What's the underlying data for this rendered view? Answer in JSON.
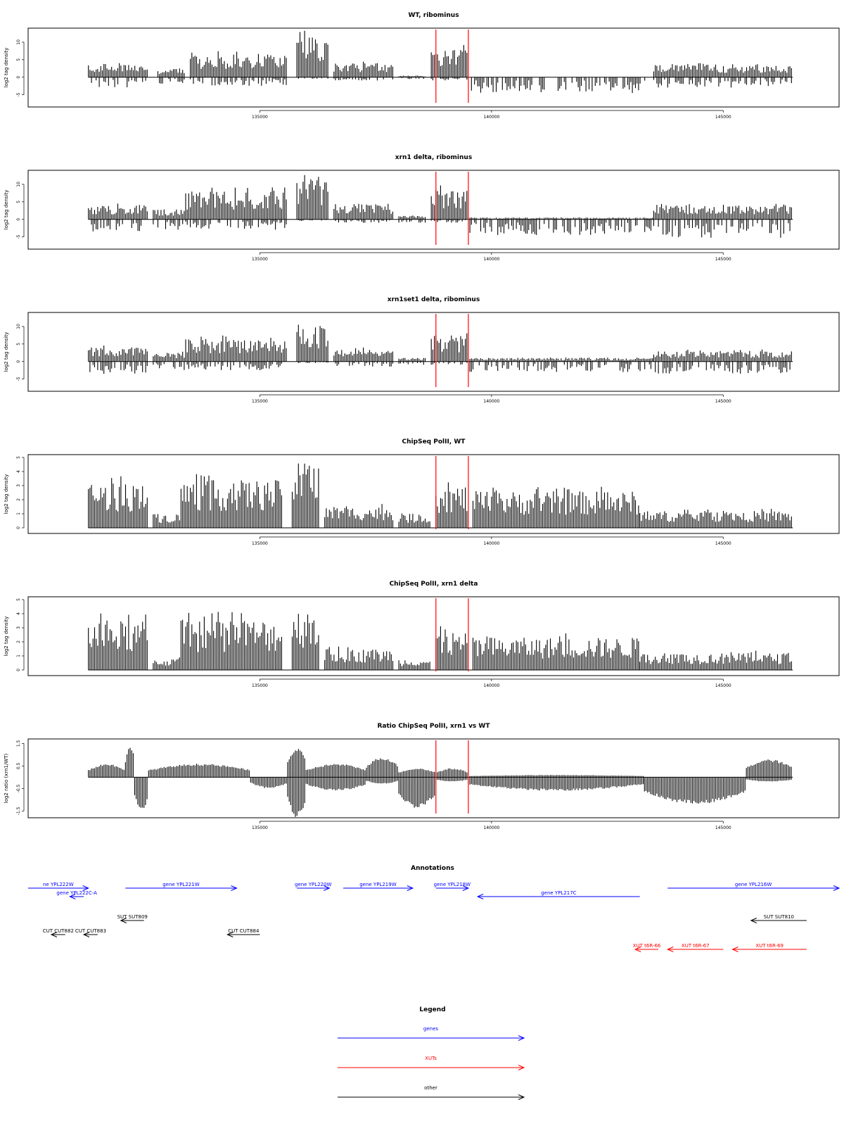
{
  "panels": [
    {
      "title": "WT, ribominus",
      "ylabel": "log2 tag density",
      "yticks": [
        -5,
        0,
        5,
        10
      ],
      "ylim": [
        -8.5,
        14
      ],
      "mode": "bipolar",
      "segments": [
        {
          "from": 131300,
          "to": 132600,
          "top": 3.5,
          "bottom": -3
        },
        {
          "from": 132800,
          "to": 133400,
          "top": 2.5,
          "bottom": -2
        },
        {
          "from": 133500,
          "to": 135600,
          "top": 6.5,
          "bottom": -2.5
        },
        {
          "from": 135800,
          "to": 136500,
          "top": 12,
          "bottom": -0.5
        },
        {
          "from": 136600,
          "to": 137900,
          "top": 4,
          "bottom": -1
        },
        {
          "from": 138000,
          "to": 138600,
          "top": 0.5,
          "bottom": -0.5
        },
        {
          "from": 138700,
          "to": 139500,
          "top": 8,
          "bottom": -1
        },
        {
          "from": 139500,
          "to": 143500,
          "top": 0,
          "bottom": -4.5
        },
        {
          "from": 143500,
          "to": 146500,
          "top": 3.5,
          "bottom": -3
        }
      ]
    },
    {
      "title": "xrn1 delta, ribominus",
      "ylabel": "log2 tag density",
      "yticks": [
        -5,
        0,
        5,
        10
      ],
      "ylim": [
        -8.5,
        14
      ],
      "mode": "bipolar",
      "segments": [
        {
          "from": 131300,
          "to": 132600,
          "top": 4,
          "bottom": -3.5
        },
        {
          "from": 132700,
          "to": 133400,
          "top": 3,
          "bottom": -3
        },
        {
          "from": 133400,
          "to": 135600,
          "top": 8,
          "bottom": -3
        },
        {
          "from": 135800,
          "to": 136500,
          "top": 11.5,
          "bottom": -0.5
        },
        {
          "from": 136600,
          "to": 137900,
          "top": 4.5,
          "bottom": -1
        },
        {
          "from": 138000,
          "to": 138600,
          "top": 1,
          "bottom": -1
        },
        {
          "from": 138700,
          "to": 139500,
          "top": 8.5,
          "bottom": -1
        },
        {
          "from": 139500,
          "to": 143500,
          "top": 0.5,
          "bottom": -4.5
        },
        {
          "from": 143500,
          "to": 146500,
          "top": 4,
          "bottom": -5.5
        }
      ]
    },
    {
      "title": "xrn1set1 delta, ribominus",
      "ylabel": "log2 tag density",
      "yticks": [
        -5,
        0,
        5,
        10
      ],
      "ylim": [
        -8.5,
        14
      ],
      "mode": "bipolar",
      "segments": [
        {
          "from": 131300,
          "to": 132600,
          "top": 4,
          "bottom": -4
        },
        {
          "from": 132700,
          "to": 133400,
          "top": 2.5,
          "bottom": -2.5
        },
        {
          "from": 133400,
          "to": 135600,
          "top": 6.5,
          "bottom": -2.5
        },
        {
          "from": 135800,
          "to": 136500,
          "top": 10.5,
          "bottom": -0.5
        },
        {
          "from": 136600,
          "to": 137900,
          "top": 3.5,
          "bottom": -1.5
        },
        {
          "from": 138000,
          "to": 138600,
          "top": 1,
          "bottom": -1
        },
        {
          "from": 138700,
          "to": 139500,
          "top": 7.5,
          "bottom": -1
        },
        {
          "from": 139500,
          "to": 143500,
          "top": 1,
          "bottom": -3
        },
        {
          "from": 143500,
          "to": 146500,
          "top": 3,
          "bottom": -3.5
        }
      ]
    },
    {
      "title": "ChipSeq PolII, WT",
      "ylabel": "log2 tag density",
      "yticks": [
        0,
        1,
        2,
        3,
        4,
        5
      ],
      "ylim": [
        -0.4,
        5.2
      ],
      "mode": "positive",
      "segments": [
        {
          "from": 131300,
          "to": 132600,
          "top": 3.2,
          "bottom": 0
        },
        {
          "from": 132700,
          "to": 133300,
          "top": 1,
          "bottom": 0
        },
        {
          "from": 133300,
          "to": 135500,
          "top": 3.4,
          "bottom": 0
        },
        {
          "from": 135700,
          "to": 136300,
          "top": 4.6,
          "bottom": 0
        },
        {
          "from": 136400,
          "to": 137900,
          "top": 1.5,
          "bottom": 0
        },
        {
          "from": 138000,
          "to": 138700,
          "top": 1,
          "bottom": 0
        },
        {
          "from": 138800,
          "to": 139500,
          "top": 3,
          "bottom": 0
        },
        {
          "from": 139600,
          "to": 143200,
          "top": 2.6,
          "bottom": 0
        },
        {
          "from": 143200,
          "to": 146500,
          "top": 1.2,
          "bottom": 0
        }
      ]
    },
    {
      "title": "ChipSeq PolII, xrn1 delta",
      "ylabel": "log2 tag density",
      "yticks": [
        0,
        1,
        2,
        3,
        4,
        5
      ],
      "ylim": [
        -0.4,
        5.2
      ],
      "mode": "positive",
      "segments": [
        {
          "from": 131300,
          "to": 132600,
          "top": 3.5,
          "bottom": 0
        },
        {
          "from": 132700,
          "to": 133300,
          "top": 0.8,
          "bottom": 0
        },
        {
          "from": 133300,
          "to": 135500,
          "top": 3.6,
          "bottom": 0
        },
        {
          "from": 135700,
          "to": 136300,
          "top": 4.4,
          "bottom": 0
        },
        {
          "from": 136400,
          "to": 137900,
          "top": 1.5,
          "bottom": 0
        },
        {
          "from": 138000,
          "to": 138700,
          "top": 0.8,
          "bottom": 0
        },
        {
          "from": 138800,
          "to": 139500,
          "top": 2.7,
          "bottom": 0
        },
        {
          "from": 139600,
          "to": 143200,
          "top": 2.3,
          "bottom": 0
        },
        {
          "from": 143200,
          "to": 146500,
          "top": 1.2,
          "bottom": 0
        }
      ]
    },
    {
      "title": "Ratio ChipSeq PolII, xrn1 vs WT",
      "ylabel": "log2 ratio (xrn1/WT)",
      "yticks": [
        -1.5,
        -0.5,
        0.5,
        1.5
      ],
      "ylim": [
        -1.8,
        1.7
      ],
      "mode": "ratio",
      "segments": [
        {
          "from": 131300,
          "to": 132100,
          "top": 0.6,
          "bottom": 0
        },
        {
          "from": 132100,
          "to": 132300,
          "top": 1.4,
          "bottom": 0
        },
        {
          "from": 132300,
          "to": 132600,
          "top": 0,
          "bottom": -1.5
        },
        {
          "from": 132600,
          "to": 134800,
          "top": 0.6,
          "bottom": 0
        },
        {
          "from": 134800,
          "to": 135600,
          "top": 0,
          "bottom": -0.5
        },
        {
          "from": 135600,
          "to": 136000,
          "top": 1.3,
          "bottom": -1.8
        },
        {
          "from": 136000,
          "to": 137300,
          "top": 0.6,
          "bottom": -0.6
        },
        {
          "from": 137300,
          "to": 138000,
          "top": 0.9,
          "bottom": -0.3
        },
        {
          "from": 138000,
          "to": 138800,
          "top": 0.4,
          "bottom": -1.4
        },
        {
          "from": 138800,
          "to": 139500,
          "top": 0.4,
          "bottom": -0.2
        },
        {
          "from": 139500,
          "to": 143300,
          "top": 0.1,
          "bottom": -0.6
        },
        {
          "from": 143300,
          "to": 145500,
          "top": 0,
          "bottom": -1.2
        },
        {
          "from": 145500,
          "to": 146500,
          "top": 0.8,
          "bottom": -0.2
        }
      ]
    }
  ],
  "xaxis": {
    "xlim": [
      130000,
      147500
    ],
    "ticks": [
      135000,
      140000,
      145000
    ],
    "data_from": 131300,
    "data_to": 146500
  },
  "red_lines": [
    138800,
    139500
  ],
  "annotations_title": "Annotations",
  "annotations": [
    {
      "label": "ne YPL222W",
      "from": 130000,
      "to": 131300,
      "dir": "right",
      "color": "#0000ff",
      "row": 0
    },
    {
      "label": "gene YPL222C-A",
      "from": 130900,
      "to": 131200,
      "dir": "left",
      "color": "#0000ff",
      "row": 1
    },
    {
      "label": "gene YPL221W",
      "from": 132100,
      "to": 134500,
      "dir": "right",
      "color": "#0000ff",
      "row": 0
    },
    {
      "label": "gene YPL220W",
      "from": 135800,
      "to": 136500,
      "dir": "right",
      "color": "#0000ff",
      "row": 0
    },
    {
      "label": "gene YPL219W",
      "from": 136800,
      "to": 138300,
      "dir": "right",
      "color": "#0000ff",
      "row": 0
    },
    {
      "label": "gene YPL218W",
      "from": 138800,
      "to": 139500,
      "dir": "right",
      "color": "#0000ff",
      "row": 0
    },
    {
      "label": "gene YPL217C",
      "from": 139700,
      "to": 143200,
      "dir": "left",
      "color": "#0000ff",
      "row": 1
    },
    {
      "label": "gene YPL216W",
      "from": 143800,
      "to": 147500,
      "dir": "right",
      "color": "#0000ff",
      "row": 0
    },
    {
      "label": "SUT SUT809",
      "from": 132000,
      "to": 132500,
      "dir": "left",
      "color": "#000000",
      "row": 2
    },
    {
      "label": "SUT SUT810",
      "from": 145600,
      "to": 146800,
      "dir": "left",
      "color": "#000000",
      "row": 2
    },
    {
      "label": "CUT CUT882",
      "from": 130500,
      "to": 130800,
      "dir": "left",
      "color": "#000000",
      "row": 3
    },
    {
      "label": "CUT CUT883",
      "from": 131200,
      "to": 131500,
      "dir": "left",
      "color": "#000000",
      "row": 3
    },
    {
      "label": "CUT CUT884",
      "from": 134300,
      "to": 135000,
      "dir": "left",
      "color": "#000000",
      "row": 3
    },
    {
      "label": "XUT t6R-66",
      "from": 143100,
      "to": 143600,
      "dir": "left",
      "color": "#ff0000",
      "row": 4
    },
    {
      "label": "XUT t6R-67",
      "from": 143800,
      "to": 145000,
      "dir": "left",
      "color": "#ff0000",
      "row": 4
    },
    {
      "label": "XUT t6R-69",
      "from": 145200,
      "to": 146800,
      "dir": "left",
      "color": "#ff0000",
      "row": 4
    }
  ],
  "legend_title": "Legend",
  "legend": [
    {
      "label": "genes",
      "color": "#0000ff"
    },
    {
      "label": "XUTs",
      "color": "#ff0000"
    },
    {
      "label": "other",
      "color": "#000000"
    }
  ],
  "chart_data": [
    {
      "type": "bar",
      "title": "WT, ribominus",
      "ylabel": "log2 tag density",
      "xlim": [
        130000,
        147500
      ],
      "ylim": [
        -8.5,
        14
      ],
      "x_ticks": [
        135000,
        140000,
        145000
      ],
      "grid": false
    },
    {
      "type": "bar",
      "title": "xrn1 delta, ribominus",
      "ylabel": "log2 tag density",
      "xlim": [
        130000,
        147500
      ],
      "ylim": [
        -8.5,
        14
      ],
      "x_ticks": [
        135000,
        140000,
        145000
      ],
      "grid": false
    },
    {
      "type": "bar",
      "title": "xrn1set1 delta, ribominus",
      "ylabel": "log2 tag density",
      "xlim": [
        130000,
        147500
      ],
      "ylim": [
        -8.5,
        14
      ],
      "x_ticks": [
        135000,
        140000,
        145000
      ],
      "grid": false
    },
    {
      "type": "bar",
      "title": "ChipSeq PolII, WT",
      "ylabel": "log2 tag density",
      "xlim": [
        130000,
        147500
      ],
      "ylim": [
        -0.4,
        5.2
      ],
      "x_ticks": [
        135000,
        140000,
        145000
      ],
      "grid": false
    },
    {
      "type": "bar",
      "title": "ChipSeq PolII, xrn1 delta",
      "ylabel": "log2 tag density",
      "xlim": [
        130000,
        147500
      ],
      "ylim": [
        -0.4,
        5.2
      ],
      "x_ticks": [
        135000,
        140000,
        145000
      ],
      "grid": false
    },
    {
      "type": "area",
      "title": "Ratio ChipSeq PolII, xrn1 vs WT",
      "ylabel": "log2 ratio (xrn1/WT)",
      "xlim": [
        130000,
        147500
      ],
      "ylim": [
        -1.8,
        1.7
      ],
      "x_ticks": [
        135000,
        140000,
        145000
      ],
      "grid": false
    }
  ]
}
